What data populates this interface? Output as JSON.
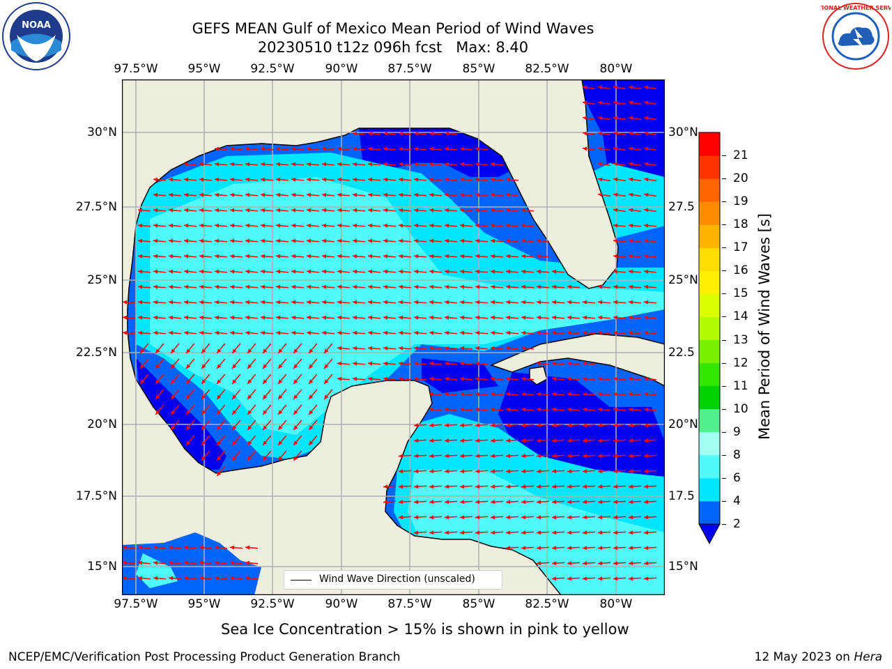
{
  "title": {
    "line1": "GEFS MEAN Gulf of Mexico Mean Period of Wind Waves",
    "line2": "20230510 t12z 096h fcst   Max: 8.40"
  },
  "map": {
    "lon_labels": [
      "97.5°W",
      "95°W",
      "92.5°W",
      "90°W",
      "87.5°W",
      "85°W",
      "82.5°W",
      "80°W"
    ],
    "lat_labels_left": [
      "30°N",
      "27.5°N",
      "25°N",
      "22.5°N",
      "20°N",
      "17.5°N",
      "15°N"
    ],
    "lat_labels_right": [
      "30°N",
      "27.5",
      "25°N",
      "22.5",
      "20°N",
      "17.5",
      "15°N"
    ],
    "colors": {
      "land": "#efedde",
      "ocean_deep": "#0000f0",
      "coast": "#000000",
      "grid": "#b0b0b0",
      "arrow": "#ff0000"
    },
    "arrow_direction": "predominantly toward west, southwest near Mexico"
  },
  "legend": {
    "label": "Wind Wave Direction (unscaled)"
  },
  "colorbar": {
    "label": "Mean Period of Wind Waves [s]",
    "ticks": [
      "2",
      "4",
      "6",
      "8",
      "9",
      "10",
      "11",
      "12",
      "13",
      "14",
      "15",
      "16",
      "17",
      "18",
      "19",
      "20",
      "21"
    ],
    "colors": [
      "#0064fa",
      "#00e6ff",
      "#50fafa",
      "#a0fff0",
      "#50f08c",
      "#00d200",
      "#32e600",
      "#78f000",
      "#b4fa00",
      "#dcff00",
      "#fff000",
      "#ffdc00",
      "#ffb400",
      "#ff8c00",
      "#ff6400",
      "#ff3200",
      "#ff0000"
    ],
    "extend_color": "#0000f0"
  },
  "footer": {
    "note": "Sea Ice Concentration > 15% is shown in pink to yellow",
    "left_credit": "NCEP/EMC/Verification Post Processing Product Generation Branch",
    "right_credit_date": "12 May 2023 on ",
    "right_credit_host": "Hera"
  },
  "logos": {
    "left": "NOAA",
    "right": "NATIONAL WEATHER SERVICE"
  }
}
